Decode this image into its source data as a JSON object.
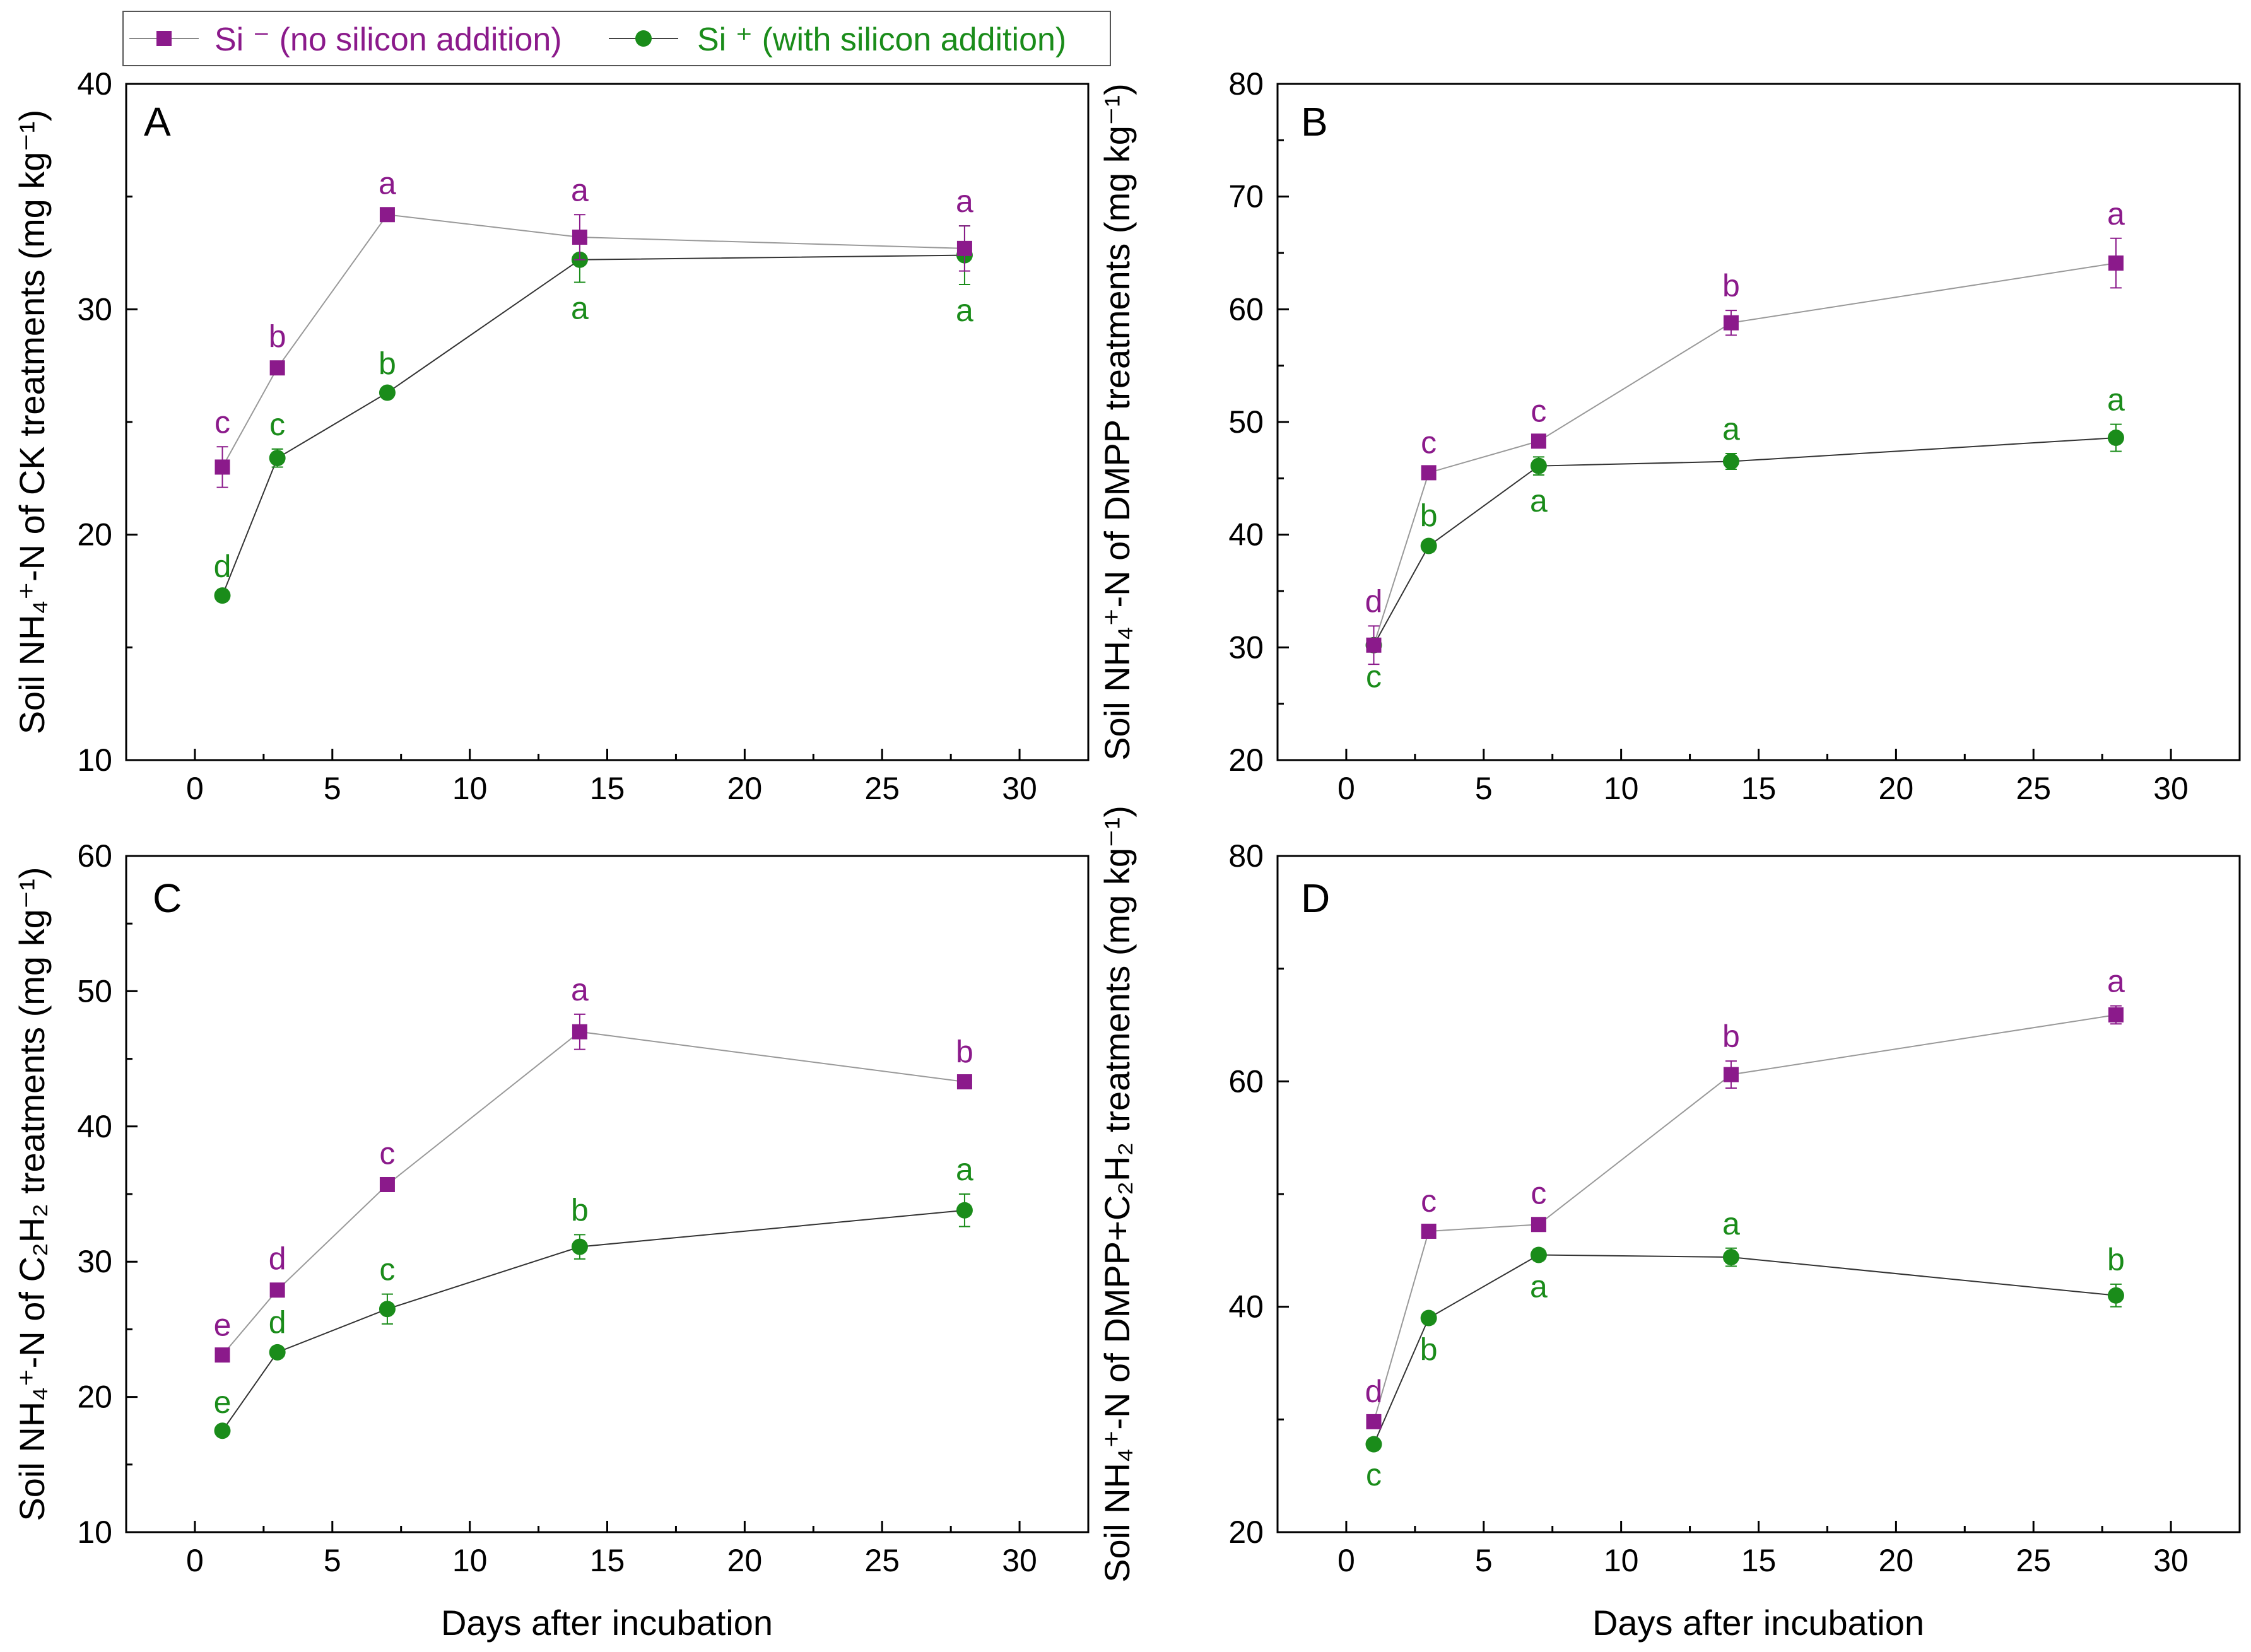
{
  "legend": {
    "si_minus": {
      "label": "Si ⁻ (no silicon addition)",
      "color": "#8B1A8B"
    },
    "si_plus": {
      "label": "Si ⁺ (with silicon addition)",
      "color": "#1A8C1A"
    }
  },
  "x_axis_title": "Days after incubation",
  "chart_data": [
    {
      "panel": "A",
      "type": "line",
      "ylabel": "Soil NH₄⁺-N of CK treatments (mg kg⁻¹)",
      "xlim": [
        -2.5,
        32.5
      ],
      "xticks": [
        0,
        5,
        10,
        15,
        20,
        25,
        30
      ],
      "ylim": [
        10,
        40
      ],
      "yticks": [
        10,
        20,
        30,
        40
      ],
      "x": [
        1,
        3,
        7,
        14,
        28
      ],
      "series": [
        {
          "name": "Si-",
          "values": [
            23.0,
            27.4,
            34.2,
            33.2,
            32.7
          ],
          "errors": [
            0.9,
            0.3,
            0.3,
            1.0,
            1.0
          ],
          "letters": [
            "c",
            "b",
            "a",
            "a",
            "a"
          ]
        },
        {
          "name": "Si+",
          "values": [
            17.3,
            23.4,
            26.3,
            32.2,
            32.4
          ],
          "errors": [
            0.2,
            0.4,
            0.2,
            1.0,
            1.3
          ],
          "letters": [
            "d",
            "c",
            "b",
            "a",
            "a"
          ]
        }
      ]
    },
    {
      "panel": "B",
      "type": "line",
      "ylabel": "Soil NH₄⁺-N of DMPP treatments (mg kg⁻¹)",
      "xlim": [
        -2.5,
        32.5
      ],
      "xticks": [
        0,
        5,
        10,
        15,
        20,
        25,
        30
      ],
      "ylim": [
        20,
        80
      ],
      "yticks": [
        20,
        30,
        40,
        50,
        60,
        70,
        80
      ],
      "x": [
        1,
        3,
        7,
        14,
        28
      ],
      "series": [
        {
          "name": "Si-",
          "values": [
            30.2,
            45.5,
            48.3,
            58.8,
            64.1
          ],
          "errors": [
            1.7,
            0.5,
            0.5,
            1.1,
            2.2
          ],
          "letters": [
            "d",
            "c",
            "c",
            "b",
            "a"
          ]
        },
        {
          "name": "Si+",
          "values": [
            30.2,
            39.0,
            46.1,
            46.5,
            48.6
          ],
          "errors": [
            0.5,
            0.5,
            0.8,
            0.7,
            1.2
          ],
          "letters": [
            "c",
            "b",
            "a",
            "a",
            "a"
          ]
        }
      ]
    },
    {
      "panel": "C",
      "type": "line",
      "ylabel": "Soil NH₄⁺-N of C₂H₂ treatments (mg kg⁻¹)",
      "xlim": [
        -2.5,
        32.5
      ],
      "xticks": [
        0,
        5,
        10,
        15,
        20,
        25,
        30
      ],
      "ylim": [
        10,
        60
      ],
      "yticks": [
        10,
        20,
        30,
        40,
        50,
        60
      ],
      "x": [
        1,
        3,
        7,
        14,
        28
      ],
      "series": [
        {
          "name": "Si-",
          "values": [
            23.1,
            27.9,
            35.7,
            47.0,
            43.3
          ],
          "errors": [
            0.4,
            0.5,
            0.5,
            1.3,
            0.4
          ],
          "letters": [
            "e",
            "d",
            "c",
            "a",
            "b"
          ]
        },
        {
          "name": "Si+",
          "values": [
            17.5,
            23.3,
            26.5,
            31.1,
            33.8
          ],
          "errors": [
            0.3,
            0.4,
            1.1,
            0.9,
            1.2
          ],
          "letters": [
            "e",
            "d",
            "c",
            "b",
            "a"
          ]
        }
      ]
    },
    {
      "panel": "D",
      "type": "line",
      "ylabel": "Soil NH₄⁺-N of DMPP+C₂H₂ treatments (mg kg⁻¹)",
      "xlim": [
        -2.5,
        32.5
      ],
      "xticks": [
        0,
        5,
        10,
        15,
        20,
        25,
        30
      ],
      "ylim": [
        20,
        80
      ],
      "yticks": [
        20,
        40,
        60,
        80
      ],
      "x": [
        1,
        3,
        7,
        14,
        28
      ],
      "series": [
        {
          "name": "Si-",
          "values": [
            29.8,
            46.7,
            47.3,
            60.6,
            65.9
          ],
          "errors": [
            0.5,
            0.5,
            0.6,
            1.2,
            0.8
          ],
          "letters": [
            "d",
            "c",
            "c",
            "b",
            "a"
          ]
        },
        {
          "name": "Si+",
          "values": [
            27.8,
            39.0,
            44.6,
            44.4,
            41.0
          ],
          "errors": [
            0.4,
            0.5,
            0.5,
            0.8,
            1.0
          ],
          "letters": [
            "c",
            "b",
            "a",
            "a",
            "b"
          ]
        }
      ]
    }
  ]
}
